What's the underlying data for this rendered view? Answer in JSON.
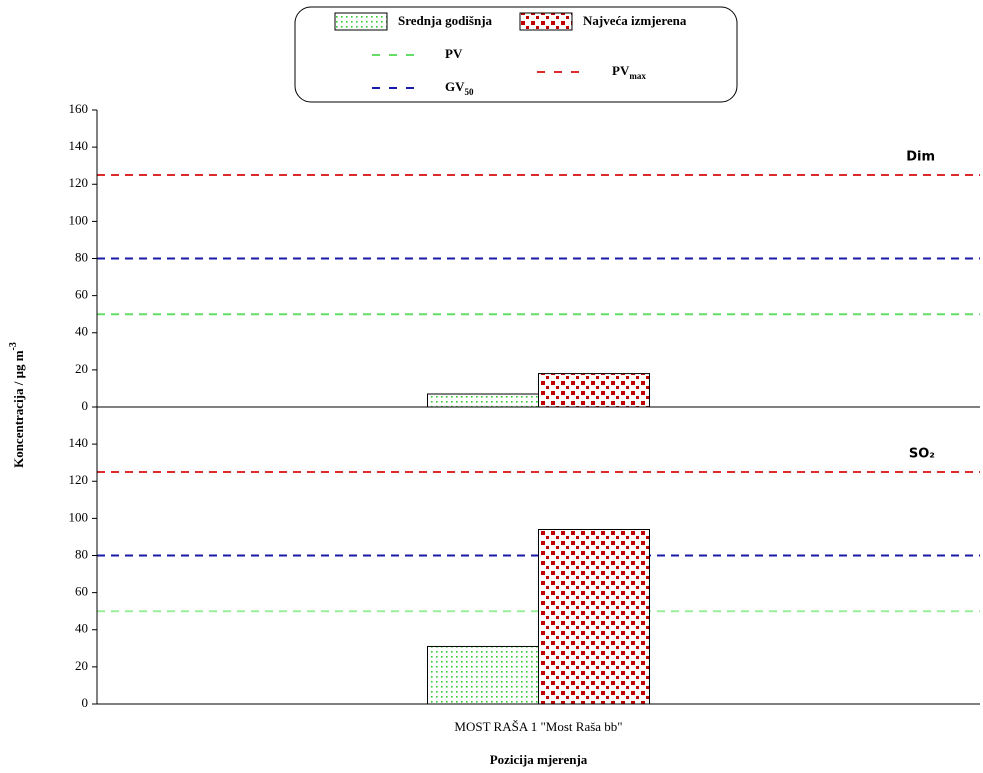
{
  "chart_data": [
    {
      "type": "bar",
      "title": "Dim",
      "ylabel": "Koncentracija / μg m",
      "ylabel_sup": "-3",
      "ylim": [
        0,
        160
      ],
      "yticks": [
        0,
        20,
        40,
        60,
        80,
        100,
        120,
        140,
        160
      ],
      "series": [
        {
          "name": "Srednja godišnja",
          "color": "#33cc33",
          "values": [
            7
          ]
        },
        {
          "name": "Najveća izmjerena",
          "color": "#c00000",
          "values": [
            18
          ]
        }
      ],
      "reference_lines": [
        {
          "name": "PV",
          "value": 50,
          "color": "#66dd66"
        },
        {
          "name": "GV",
          "sub": "50",
          "value": 80,
          "color": "#1a1aa8"
        },
        {
          "name": "PV",
          "sub": "max",
          "value": 125,
          "color": "#dd2a2a"
        }
      ]
    },
    {
      "type": "bar",
      "title": "SO₂",
      "xlabel": "Pozicija mjerenja",
      "categories": [
        "MOST RAŠA 1 \"Most Raša bb\""
      ],
      "ylim": [
        0,
        160
      ],
      "yticks": [
        0,
        20,
        40,
        60,
        80,
        100,
        120,
        140
      ],
      "series": [
        {
          "color": "#33cc33",
          "values": [
            31
          ]
        },
        {
          "color": "#c00000",
          "values": [
            94
          ]
        }
      ],
      "reference_lines": [
        {
          "value": 50,
          "color": "#99ee99"
        },
        {
          "value": 80,
          "color": "#1a1aa8"
        },
        {
          "value": 125,
          "color": "#dd2a2a"
        }
      ]
    }
  ]
}
